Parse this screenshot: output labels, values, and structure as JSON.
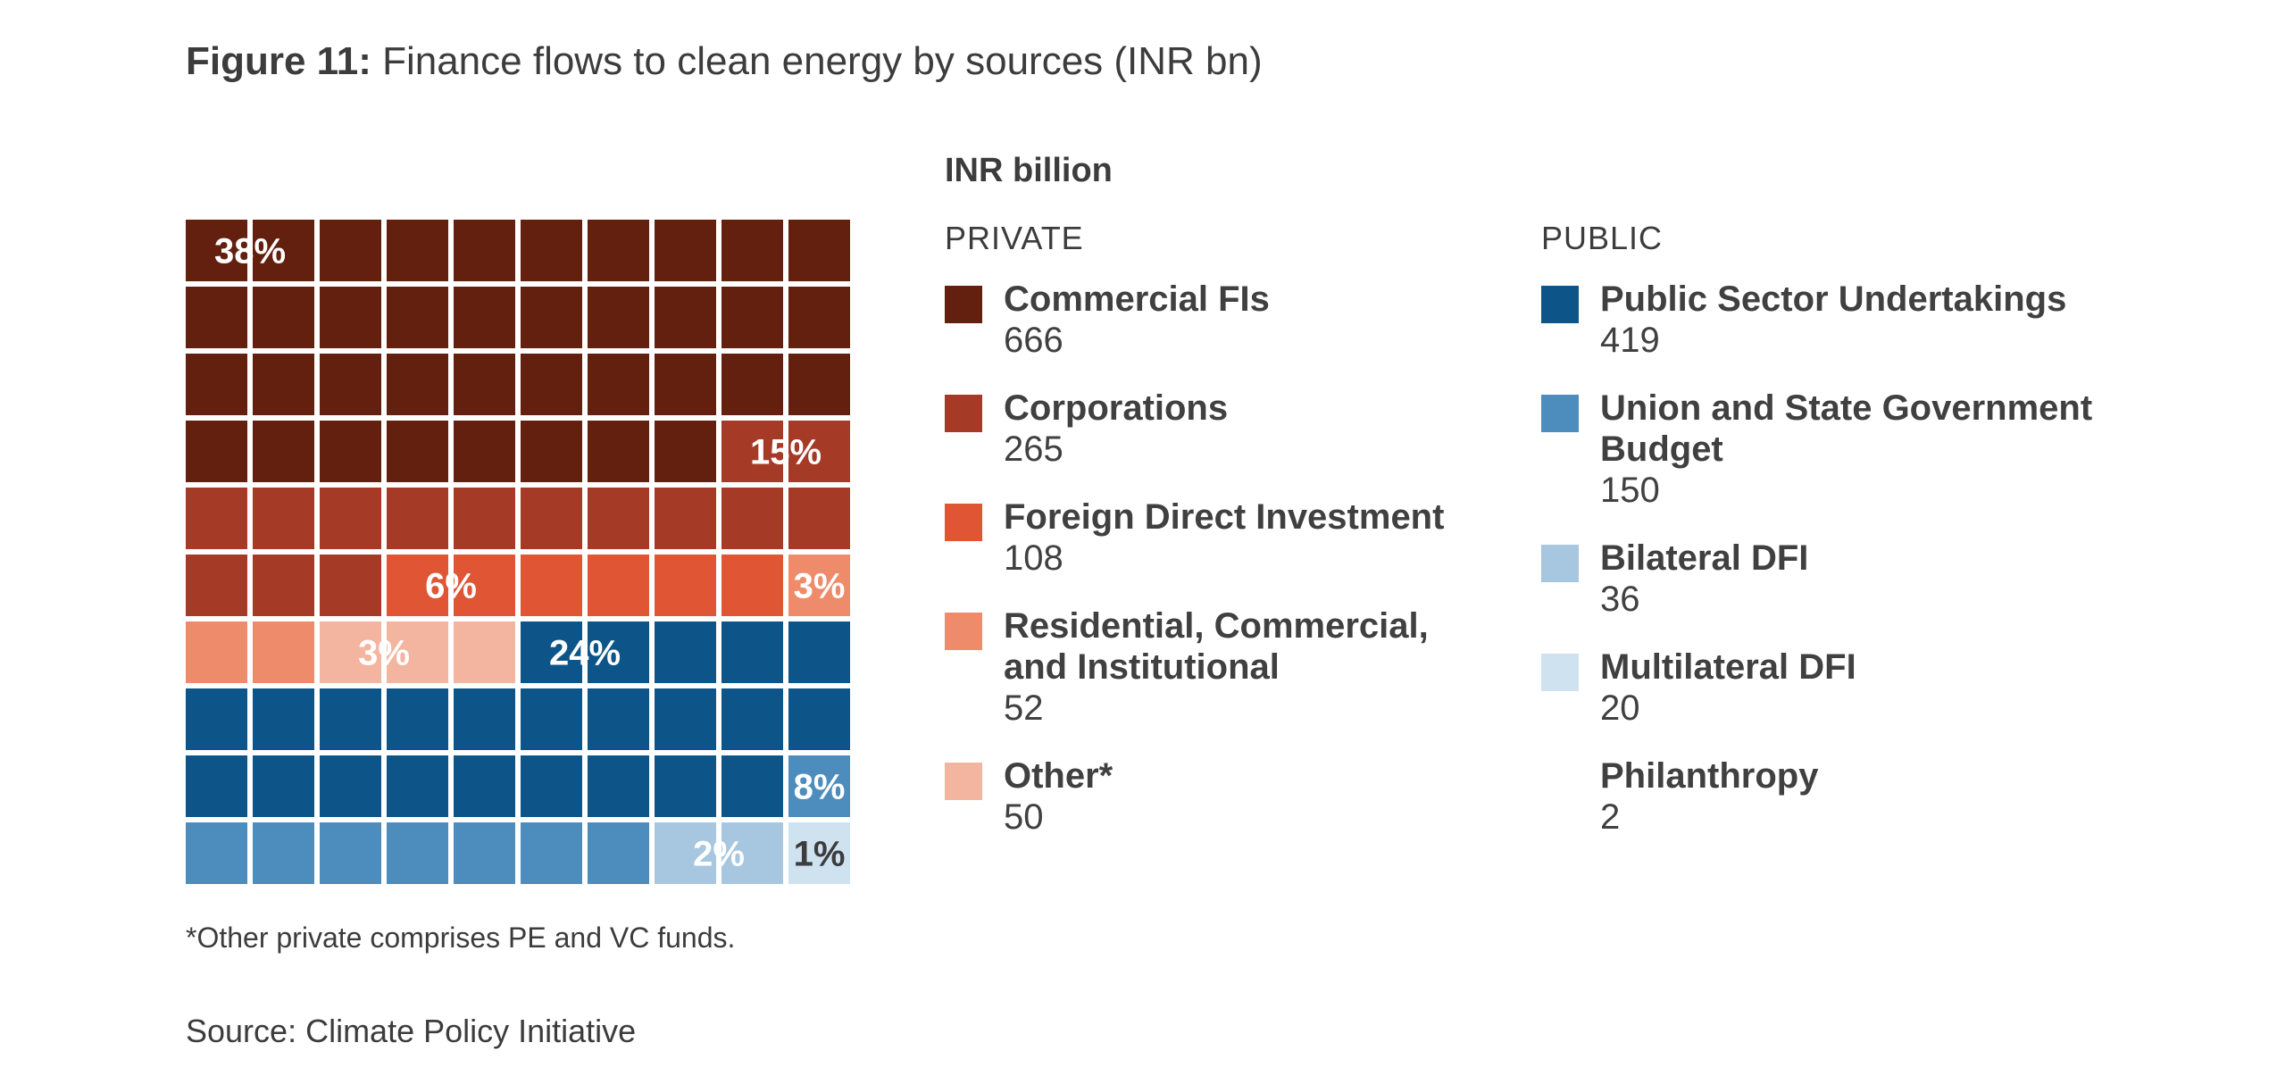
{
  "title": {
    "prefix": "Figure 11:",
    "text": "Finance flows to clean energy by sources (INR bn)"
  },
  "legend": {
    "unit_label": "INR billion",
    "private_heading": "PRIVATE",
    "public_heading": "PUBLIC"
  },
  "footnote": "*Other private comprises PE and VC funds.",
  "source": "Source: Climate Policy Initiative",
  "chart_data": {
    "type": "waffle",
    "title": "Finance flows to clean energy by sources (INR bn)",
    "unit": "INR billion",
    "grid": {
      "rows": 10,
      "cols": 10
    },
    "series": [
      {
        "name": "Commercial FIs",
        "group": "PRIVATE",
        "value": 666,
        "cells": 38,
        "pct_label": "38%",
        "color": "#63200f"
      },
      {
        "name": "Corporations",
        "group": "PRIVATE",
        "value": 265,
        "cells": 15,
        "pct_label": "15%",
        "color": "#a53a27"
      },
      {
        "name": "Foreign Direct Investment",
        "group": "PRIVATE",
        "value": 108,
        "cells": 6,
        "pct_label": "6%",
        "color": "#e05534"
      },
      {
        "name": "Residential, Commercial, and Institutional",
        "group": "PRIVATE",
        "value": 52,
        "cells": 3,
        "pct_label": "3%",
        "color": "#ee8b6a"
      },
      {
        "name": "Other*",
        "group": "PRIVATE",
        "value": 50,
        "cells": 3,
        "pct_label": "3%",
        "color": "#f3b5a0"
      },
      {
        "name": "Public Sector Undertakings",
        "group": "PUBLIC",
        "value": 419,
        "cells": 24,
        "pct_label": "24%",
        "color": "#0d5589"
      },
      {
        "name": "Union and State Government Budget",
        "group": "PUBLIC",
        "value": 150,
        "cells": 8,
        "pct_label": "8%",
        "color": "#4d8dbd"
      },
      {
        "name": "Bilateral DFI",
        "group": "PUBLIC",
        "value": 36,
        "cells": 2,
        "pct_label": "2%",
        "color": "#a7c6e0"
      },
      {
        "name": "Multilateral DFI",
        "group": "PUBLIC",
        "value": 20,
        "cells": 1,
        "pct_label": "1%",
        "color": "#cfe2f0"
      },
      {
        "name": "Philanthropy",
        "group": "PUBLIC",
        "value": 2,
        "cells": 0,
        "pct_label": "",
        "color": "#ffffff"
      }
    ]
  }
}
